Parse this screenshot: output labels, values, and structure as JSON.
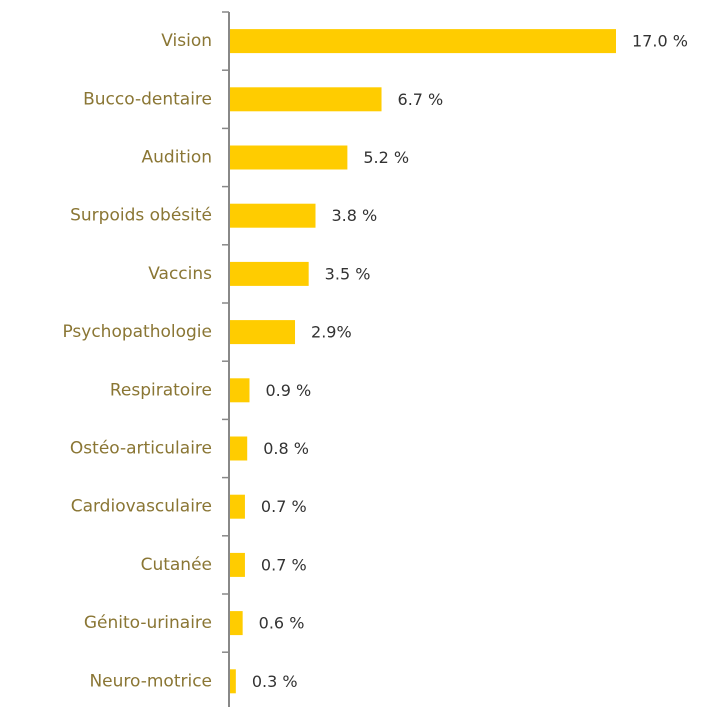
{
  "chart_data": {
    "type": "barh",
    "categories": [
      "Vision",
      "Bucco-dentaire",
      "Audition",
      "Surpoids obésité",
      "Vaccins",
      "Psychopathologie",
      "Respiratoire",
      "Ostéo-articulaire",
      "Cardiovasculaire",
      "Cutanée",
      "Génito-urinaire",
      "Neuro-motrice"
    ],
    "values": [
      17.0,
      6.7,
      5.2,
      3.8,
      3.5,
      2.9,
      0.9,
      0.8,
      0.7,
      0.7,
      0.6,
      0.3
    ],
    "value_labels": [
      "17.0 %",
      "6.7 %",
      "5.2 %",
      "3.8 %",
      "3.5 %",
      "2.9%",
      "0.9 %",
      "0.8 %",
      "0.7 %",
      "0.7 %",
      "0.6 %",
      "0.3 %"
    ],
    "color": "#ffcc00",
    "xlim": [
      0,
      17
    ]
  }
}
